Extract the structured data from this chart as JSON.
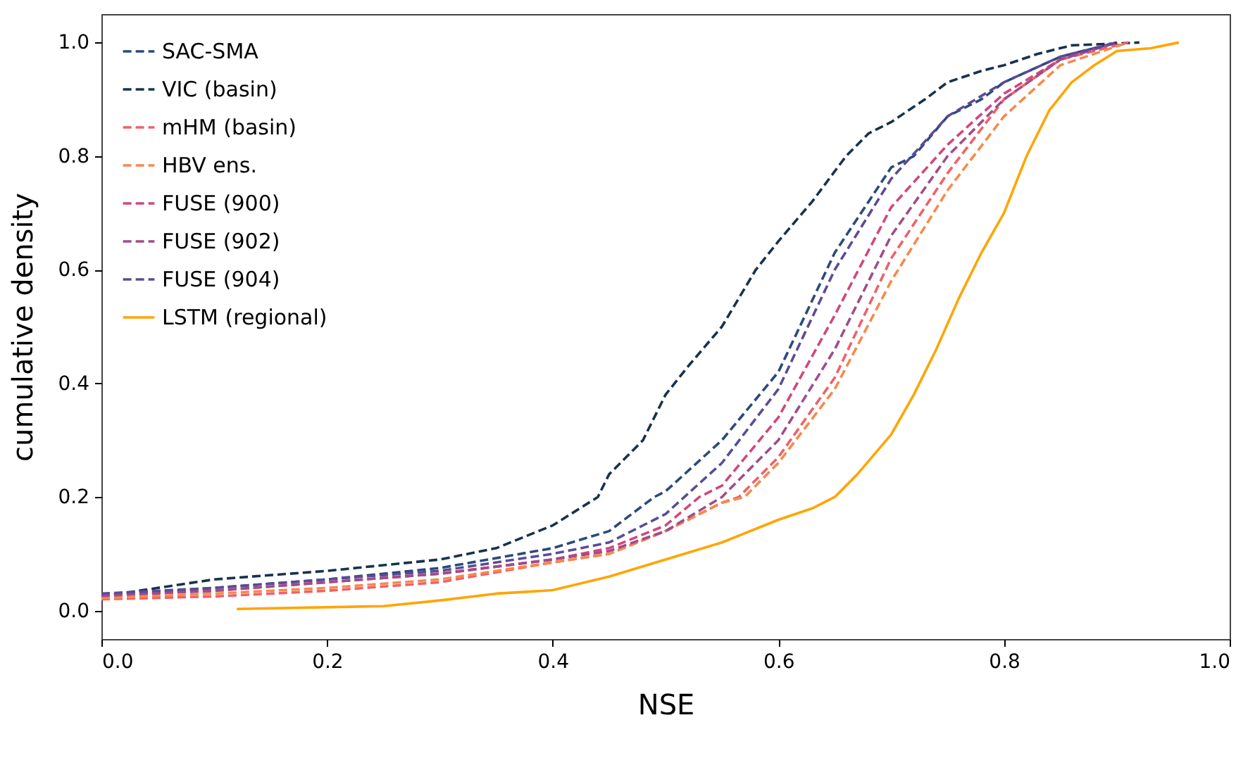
{
  "chart_data": {
    "type": "line",
    "xlabel": "NSE",
    "ylabel": "cumulative density",
    "xlim": [
      0,
      1
    ],
    "ylim": [
      -0.05,
      1.05
    ],
    "xticks": [
      {
        "value": 0,
        "label": "0.0"
      },
      {
        "value": 0.2,
        "label": "0.2"
      },
      {
        "value": 0.4,
        "label": "0.4"
      },
      {
        "value": 0.6,
        "label": "0.6"
      },
      {
        "value": 0.8,
        "label": "0.8"
      },
      {
        "value": 1,
        "label": "1.0"
      }
    ],
    "yticks": [
      {
        "value": 0,
        "label": "0.0"
      },
      {
        "value": 0.2,
        "label": "0.2"
      },
      {
        "value": 0.4,
        "label": "0.4"
      },
      {
        "value": 0.6,
        "label": "0.6"
      },
      {
        "value": 0.8,
        "label": "0.8"
      },
      {
        "value": 1,
        "label": "1.0"
      }
    ],
    "grid": false,
    "legend": "top left",
    "series": [
      {
        "name": "SAC-SMA",
        "color": "#2b4a7c",
        "line_style": "dashed",
        "x": [
          0,
          0.1,
          0.2,
          0.3,
          0.4,
          0.45,
          0.49,
          0.5,
          0.55,
          0.6,
          0.65,
          0.7,
          0.72,
          0.75,
          0.78,
          0.8,
          0.85,
          0.9
        ],
        "values": [
          0.025,
          0.04,
          0.055,
          0.075,
          0.11,
          0.14,
          0.2,
          0.21,
          0.3,
          0.42,
          0.63,
          0.78,
          0.8,
          0.87,
          0.9,
          0.93,
          0.975,
          1.0
        ]
      },
      {
        "name": "VIC (basin)",
        "color": "#16324f",
        "line_style": "dashed",
        "x": [
          0,
          0.1,
          0.2,
          0.3,
          0.35,
          0.4,
          0.44,
          0.45,
          0.48,
          0.5,
          0.52,
          0.55,
          0.58,
          0.6,
          0.63,
          0.66,
          0.68,
          0.7,
          0.73,
          0.75,
          0.78,
          0.8,
          0.83,
          0.86,
          0.92
        ],
        "values": [
          0.025,
          0.055,
          0.07,
          0.09,
          0.11,
          0.15,
          0.2,
          0.24,
          0.3,
          0.38,
          0.43,
          0.5,
          0.6,
          0.65,
          0.72,
          0.8,
          0.84,
          0.86,
          0.9,
          0.93,
          0.95,
          0.96,
          0.98,
          0.995,
          1.0
        ]
      },
      {
        "name": "mHM (basin)",
        "color": "#f0606a",
        "line_style": "dashed",
        "x": [
          0,
          0.1,
          0.2,
          0.3,
          0.4,
          0.45,
          0.5,
          0.55,
          0.565,
          0.6,
          0.65,
          0.7,
          0.75,
          0.8,
          0.85,
          0.91
        ],
        "values": [
          0.02,
          0.025,
          0.035,
          0.05,
          0.085,
          0.1,
          0.14,
          0.19,
          0.2,
          0.27,
          0.41,
          0.62,
          0.77,
          0.9,
          0.97,
          1.0
        ]
      },
      {
        "name": "HBV ens.",
        "color": "#f58a4b",
        "line_style": "dashed",
        "x": [
          0,
          0.1,
          0.2,
          0.3,
          0.4,
          0.45,
          0.5,
          0.55,
          0.57,
          0.6,
          0.65,
          0.7,
          0.75,
          0.8,
          0.85,
          0.91
        ],
        "values": [
          0.022,
          0.03,
          0.04,
          0.055,
          0.085,
          0.1,
          0.14,
          0.19,
          0.2,
          0.26,
          0.39,
          0.58,
          0.74,
          0.87,
          0.96,
          1.0
        ]
      },
      {
        "name": "FUSE (900)",
        "color": "#d1477c",
        "line_style": "dashed",
        "x": [
          0,
          0.1,
          0.2,
          0.3,
          0.4,
          0.45,
          0.5,
          0.53,
          0.55,
          0.6,
          0.65,
          0.7,
          0.75,
          0.8,
          0.85,
          0.9
        ],
        "values": [
          0.028,
          0.035,
          0.05,
          0.065,
          0.09,
          0.11,
          0.15,
          0.2,
          0.22,
          0.34,
          0.52,
          0.71,
          0.82,
          0.91,
          0.97,
          1.0
        ]
      },
      {
        "name": "FUSE (902)",
        "color": "#a04c8a",
        "line_style": "dashed",
        "x": [
          0,
          0.1,
          0.2,
          0.3,
          0.4,
          0.45,
          0.5,
          0.55,
          0.6,
          0.65,
          0.7,
          0.75,
          0.8,
          0.85,
          0.9
        ],
        "values": [
          0.026,
          0.035,
          0.05,
          0.065,
          0.09,
          0.105,
          0.14,
          0.2,
          0.3,
          0.46,
          0.66,
          0.8,
          0.9,
          0.97,
          1.0
        ]
      },
      {
        "name": "FUSE (904)",
        "color": "#5b4b97",
        "line_style": "dashed",
        "x": [
          0,
          0.1,
          0.2,
          0.3,
          0.4,
          0.45,
          0.5,
          0.55,
          0.6,
          0.65,
          0.7,
          0.75,
          0.8,
          0.85,
          0.9
        ],
        "values": [
          0.03,
          0.04,
          0.055,
          0.07,
          0.1,
          0.12,
          0.17,
          0.26,
          0.39,
          0.6,
          0.76,
          0.87,
          0.93,
          0.975,
          1.0
        ]
      },
      {
        "name": "LSTM (regional)",
        "color": "#ffa500",
        "line_style": "solid",
        "x": [
          0.12,
          0.25,
          0.3,
          0.35,
          0.4,
          0.45,
          0.5,
          0.55,
          0.6,
          0.63,
          0.65,
          0.67,
          0.7,
          0.72,
          0.74,
          0.76,
          0.78,
          0.8,
          0.82,
          0.84,
          0.86,
          0.88,
          0.9,
          0.93,
          0.955
        ],
        "values": [
          0.003,
          0.008,
          0.018,
          0.03,
          0.036,
          0.06,
          0.09,
          0.12,
          0.16,
          0.18,
          0.2,
          0.24,
          0.31,
          0.38,
          0.46,
          0.55,
          0.63,
          0.7,
          0.8,
          0.88,
          0.93,
          0.96,
          0.985,
          0.99,
          1.0
        ]
      }
    ]
  }
}
